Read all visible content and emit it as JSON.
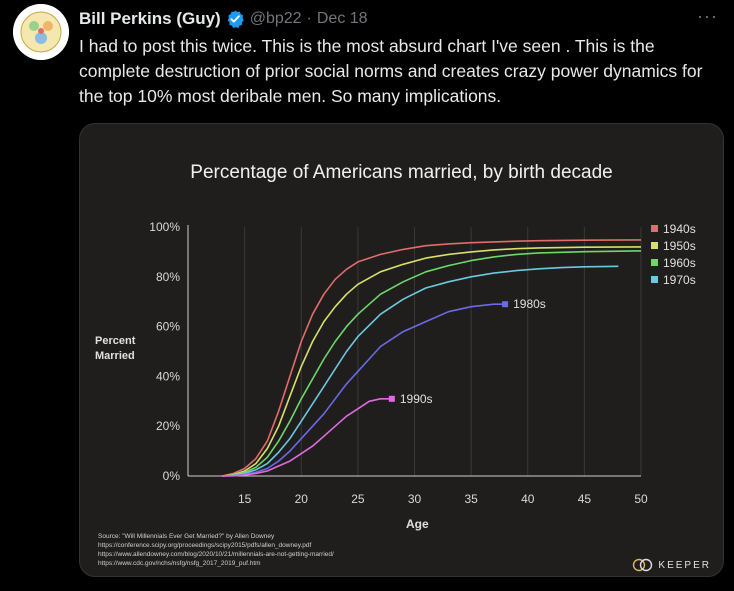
{
  "tweet": {
    "author_name": "Bill Perkins (Guy)",
    "handle": "@bp22",
    "separator": "·",
    "date": "Dec 18",
    "more_label": "···",
    "text": "I had to post this twice. This is the most absurd chart I've seen . This is the complete destruction of prior social norms and creates crazy power dynamics for the top 10% most deribale men. So many implications."
  },
  "colors": {
    "background": "#000000",
    "card_background": "#201e1c",
    "verified": "#1d9bf0",
    "muted": "#71767b",
    "series_1940s": "#e06c6c",
    "series_1950s": "#d8e06a",
    "series_1960s": "#6cd86a",
    "series_1970s": "#6cc8e0",
    "series_1980s": "#6a6ae6",
    "series_1990s": "#e06ae0"
  },
  "chart_data": {
    "type": "line",
    "title": "Percentage of Americans married, by birth decade",
    "xlabel": "Age",
    "ylabel_lines": [
      "Percent",
      "Married"
    ],
    "xlim": [
      10,
      50
    ],
    "ylim": [
      0,
      100
    ],
    "xticks": [
      15,
      20,
      25,
      30,
      35,
      40,
      45,
      50
    ],
    "yticks": [
      0,
      20,
      40,
      60,
      80,
      100
    ],
    "ytick_labels": [
      "0%",
      "20%",
      "40%",
      "60%",
      "80%",
      "100%"
    ],
    "grid": "vertical",
    "legend_position": "right",
    "series": [
      {
        "name": "1940s",
        "x": [
          13,
          14,
          15,
          16,
          17,
          18,
          19,
          20,
          21,
          22,
          23,
          24,
          25,
          27,
          29,
          31,
          33,
          35,
          37,
          39,
          41,
          45,
          50
        ],
        "y": [
          0,
          1,
          3,
          7,
          14,
          26,
          40,
          54,
          65,
          73,
          79,
          83,
          86,
          89,
          91,
          92.5,
          93.2,
          93.7,
          94,
          94.3,
          94.5,
          94.7,
          94.8
        ]
      },
      {
        "name": "1950s",
        "x": [
          13,
          14,
          15,
          16,
          17,
          18,
          19,
          20,
          21,
          22,
          23,
          24,
          25,
          27,
          29,
          31,
          33,
          35,
          37,
          39,
          41,
          45,
          50
        ],
        "y": [
          0,
          0.5,
          2,
          5,
          11,
          20,
          32,
          44,
          54,
          62,
          68,
          73,
          77,
          82,
          85,
          87.5,
          89,
          90,
          90.8,
          91.3,
          91.6,
          91.9,
          92
        ]
      },
      {
        "name": "1960s",
        "x": [
          13,
          14,
          15,
          16,
          17,
          18,
          19,
          20,
          21,
          22,
          23,
          24,
          25,
          27,
          29,
          31,
          33,
          35,
          37,
          39,
          41,
          45,
          50
        ],
        "y": [
          0,
          0.3,
          1.5,
          3.5,
          7.5,
          14,
          22,
          31,
          39,
          47,
          54,
          60,
          65,
          73,
          78,
          82,
          84.5,
          86.5,
          88,
          89,
          89.6,
          90.1,
          90.4
        ]
      },
      {
        "name": "1970s",
        "x": [
          13,
          14,
          15,
          16,
          17,
          18,
          19,
          20,
          21,
          22,
          23,
          24,
          25,
          27,
          29,
          31,
          33,
          35,
          37,
          39,
          41,
          43,
          45,
          48
        ],
        "y": [
          0,
          0.2,
          1,
          2.5,
          5,
          9.5,
          15,
          22,
          29,
          36,
          43,
          50,
          56,
          65,
          71,
          75.5,
          78,
          80,
          81.5,
          82.5,
          83.2,
          83.7,
          84,
          84.2
        ]
      },
      {
        "name": "1980s",
        "x": [
          13,
          14,
          15,
          16,
          17,
          18,
          19,
          20,
          21,
          22,
          23,
          24,
          25,
          26,
          27,
          29,
          31,
          33,
          35,
          37,
          38
        ],
        "y": [
          0,
          0.1,
          0.6,
          1.5,
          3,
          6,
          10,
          15,
          20,
          25,
          31,
          37,
          42,
          47,
          52,
          58,
          62,
          66,
          68,
          69,
          69
        ]
      },
      {
        "name": "1990s",
        "x": [
          13,
          14,
          15,
          16,
          17,
          18,
          19,
          20,
          21,
          22,
          23,
          24,
          25,
          26,
          27,
          28
        ],
        "y": [
          0,
          0.1,
          0.4,
          1,
          2,
          4,
          6,
          9,
          12,
          16,
          20,
          24,
          27,
          30,
          31,
          31
        ]
      }
    ],
    "end_labels": [
      {
        "series": "1980s",
        "text": "1980s"
      },
      {
        "series": "1990s",
        "text": "1990s"
      }
    ],
    "source_lines": [
      "Source: \"Will Millennials Ever Get Married?\" by Allen Downey",
      "https://conference.scipy.org/proceedings/scipy2015/pdfs/allen_downey.pdf",
      "https://www.allendowney.com/blog/2020/10/21/millennials-are-not-getting-married/",
      "https://www.cdc.gov/nchs/nsfg/nsfg_2017_2019_puf.htm"
    ],
    "brand": "KEEPER"
  }
}
